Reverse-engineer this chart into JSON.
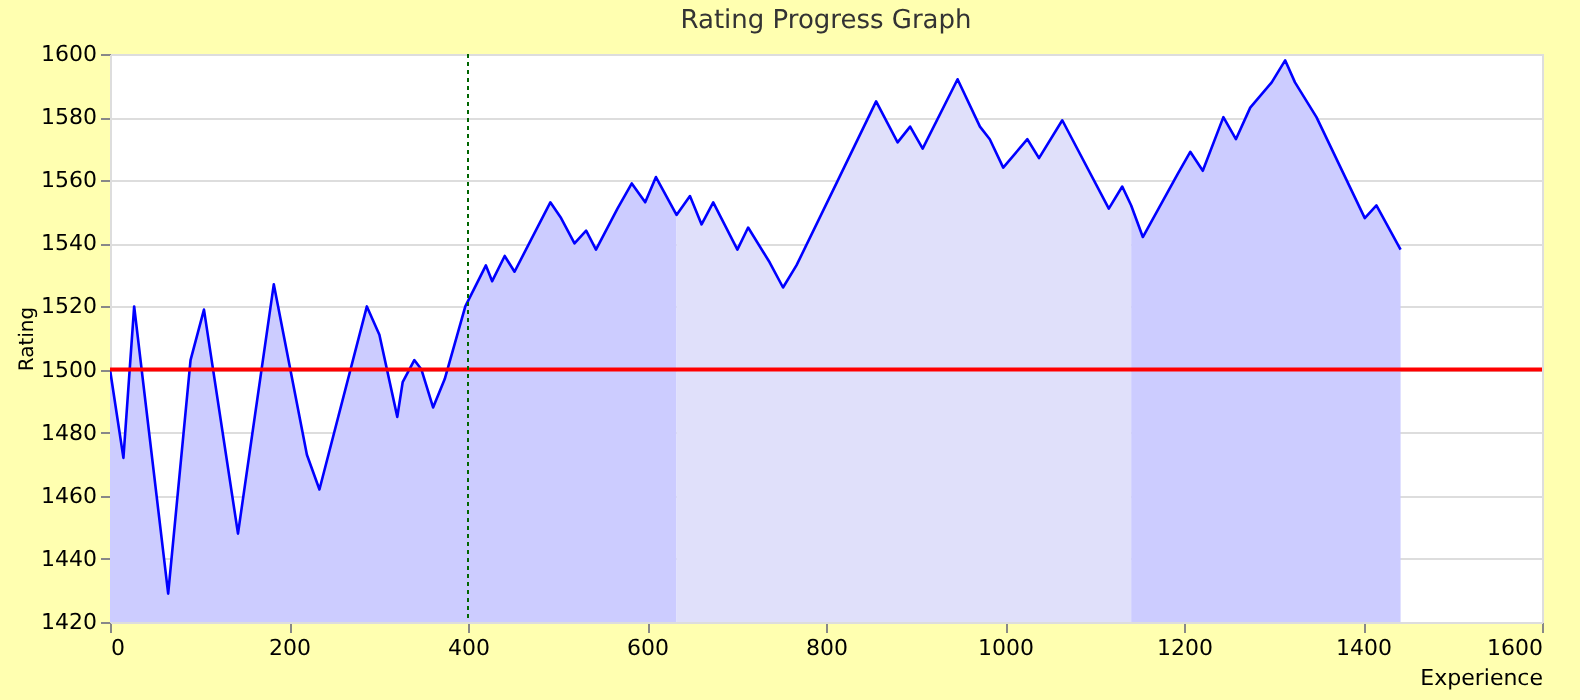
{
  "chart_data": {
    "type": "line",
    "title": "Rating Progress Graph",
    "xlabel": "Experience",
    "ylabel": "Rating",
    "xlim": [
      0,
      1600
    ],
    "xticks": [
      0,
      200,
      400,
      600,
      800,
      1000,
      1200,
      1400,
      1600
    ],
    "ylim": [
      1420,
      1600
    ],
    "yticks": [
      1420,
      1440,
      1460,
      1480,
      1500,
      1520,
      1540,
      1560,
      1580,
      1600
    ],
    "grid": "y",
    "ref_lines": [
      {
        "axis": "y",
        "value": 1500,
        "color": "#ff0000",
        "line_style": "solid"
      },
      {
        "axis": "x",
        "value": 400,
        "color": "#006600",
        "line_style": "dotted"
      }
    ],
    "series": [
      {
        "type": "area",
        "color": "#ccccff",
        "x": [
          0,
          15,
          27,
          65,
          90,
          105,
          143,
          183,
          220,
          234,
          287,
          301,
          321,
          327,
          340,
          348,
          361,
          374,
          397,
          420,
          427,
          441,
          452,
          492,
          504,
          519,
          532,
          543,
          567,
          583,
          598,
          610,
          633
        ],
        "values": [
          1500,
          1472,
          1520,
          1429,
          1503,
          1519,
          1448,
          1527,
          1473,
          1462,
          1520,
          1511,
          1485,
          1496,
          1503,
          1500,
          1488,
          1497,
          1520,
          1533,
          1528,
          1536,
          1531,
          1553,
          1548,
          1540,
          1544,
          1538,
          1551,
          1559,
          1553,
          1561,
          1549
        ]
      },
      {
        "type": "area",
        "color": "#e0e0fa",
        "x": [
          633,
          648,
          661,
          674,
          701,
          713,
          737,
          752,
          767,
          815,
          856,
          880,
          894,
          908,
          947,
          972,
          983,
          998,
          1025,
          1038,
          1064,
          1116,
          1131,
          1141
        ],
        "values": [
          1549,
          1555,
          1546,
          1553,
          1538,
          1545,
          1534,
          1526,
          1533,
          1561,
          1585,
          1572,
          1577,
          1570,
          1592,
          1577,
          1573,
          1564,
          1573,
          1567,
          1579,
          1551,
          1558,
          1552
        ]
      },
      {
        "type": "area",
        "color": "#ccccff",
        "x": [
          1141,
          1154,
          1193,
          1207,
          1221,
          1244,
          1258,
          1274,
          1298,
          1313,
          1324,
          1348,
          1402,
          1415,
          1442
        ],
        "values": [
          1552,
          1542,
          1562,
          1569,
          1563,
          1580,
          1573,
          1583,
          1591,
          1598,
          1591,
          1580,
          1548,
          1552,
          1538
        ]
      },
      {
        "color": "#0000ff",
        "x": [
          0,
          15,
          27,
          65,
          90,
          105,
          143,
          183,
          220,
          234,
          287,
          301,
          321,
          327,
          340,
          348,
          361,
          374,
          397,
          420,
          427,
          441,
          452,
          492,
          504,
          519,
          532,
          543,
          567,
          583,
          598,
          610,
          633,
          648,
          661,
          674,
          701,
          713,
          737,
          752,
          767,
          815,
          856,
          880,
          894,
          908,
          947,
          972,
          983,
          998,
          1025,
          1038,
          1064,
          1116,
          1131,
          1141,
          1154,
          1193,
          1207,
          1221,
          1244,
          1258,
          1274,
          1298,
          1313,
          1324,
          1348,
          1402,
          1415,
          1442
        ],
        "values": [
          1500,
          1472,
          1520,
          1429,
          1503,
          1519,
          1448,
          1527,
          1473,
          1462,
          1520,
          1511,
          1485,
          1496,
          1503,
          1500,
          1488,
          1497,
          1520,
          1533,
          1528,
          1536,
          1531,
          1553,
          1548,
          1540,
          1544,
          1538,
          1551,
          1559,
          1553,
          1561,
          1549,
          1555,
          1546,
          1553,
          1538,
          1545,
          1534,
          1526,
          1533,
          1561,
          1585,
          1572,
          1577,
          1570,
          1592,
          1577,
          1573,
          1564,
          1573,
          1567,
          1579,
          1551,
          1558,
          1552,
          1542,
          1562,
          1569,
          1563,
          1580,
          1573,
          1583,
          1591,
          1598,
          1591,
          1580,
          1548,
          1552,
          1538
        ]
      }
    ]
  }
}
